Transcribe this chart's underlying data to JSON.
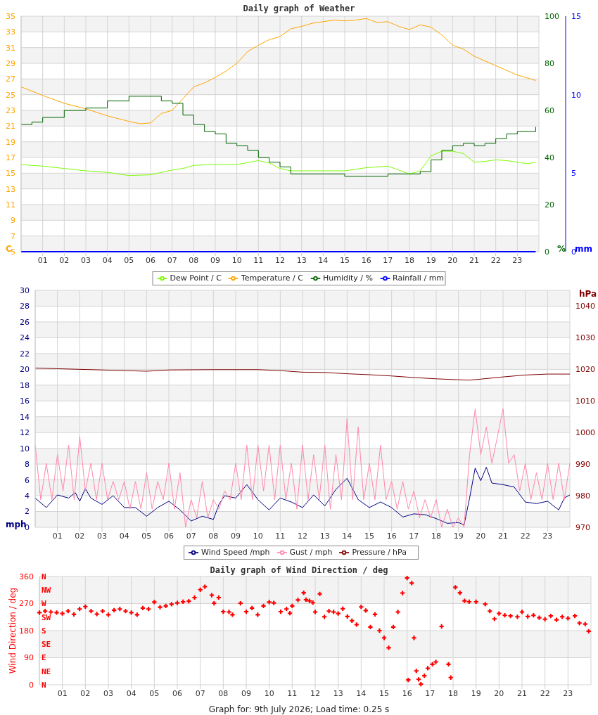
{
  "chart_data": [
    {
      "type": "line",
      "title": "Daily graph of Weather",
      "ylabel": "C",
      "y2label": "%",
      "y3label": "mm",
      "xlim": [
        0,
        24
      ],
      "xticks": [
        {
          "value": 1,
          "label": "01"
        },
        {
          "value": 2,
          "label": "02"
        },
        {
          "value": 3,
          "label": "03"
        },
        {
          "value": 4,
          "label": "04"
        },
        {
          "value": 5,
          "label": "05"
        },
        {
          "value": 6,
          "label": "06"
        },
        {
          "value": 7,
          "label": "07"
        },
        {
          "value": 8,
          "label": "08"
        },
        {
          "value": 9,
          "label": "09"
        },
        {
          "value": 10,
          "label": "10"
        },
        {
          "value": 11,
          "label": "11"
        },
        {
          "value": 12,
          "label": "12"
        },
        {
          "value": 13,
          "label": "13"
        },
        {
          "value": 14,
          "label": "14"
        },
        {
          "value": 15,
          "label": "15"
        },
        {
          "value": 16,
          "label": "16"
        },
        {
          "value": 17,
          "label": "17"
        },
        {
          "value": 18,
          "label": "18"
        },
        {
          "value": 19,
          "label": "19"
        },
        {
          "value": 20,
          "label": "20"
        },
        {
          "value": 21,
          "label": "21"
        },
        {
          "value": 22,
          "label": "22"
        },
        {
          "value": 23,
          "label": "23"
        }
      ],
      "ylim": [
        5,
        35
      ],
      "yticks": [
        5,
        7,
        9,
        11,
        13,
        15,
        17,
        19,
        21,
        23,
        25,
        27,
        29,
        31,
        33,
        35
      ],
      "y2lim": [
        0,
        100
      ],
      "y2ticks": [
        0,
        20,
        40,
        60,
        80,
        100
      ],
      "y3lim": [
        0,
        15
      ],
      "y3ticks": [
        0,
        5,
        10,
        15
      ],
      "grid": true,
      "legend": "bottom",
      "series": [
        {
          "name": "Dew Point / C",
          "color": "#7cfc00",
          "x": [
            0,
            1,
            2,
            3,
            4,
            5,
            6,
            7,
            7.5,
            8,
            9,
            10,
            11,
            11.5,
            12,
            12.5,
            13,
            14,
            15,
            16,
            17,
            18,
            18.5,
            19,
            19.5,
            20,
            20.5,
            21,
            21.5,
            22,
            22.5,
            23,
            23.5,
            23.85
          ],
          "values": [
            16.1,
            15.9,
            15.6,
            15.3,
            15.1,
            14.7,
            14.8,
            15.4,
            15.6,
            16.0,
            16.1,
            16.1,
            16.6,
            16.3,
            15.6,
            15.3,
            15.3,
            15.3,
            15.3,
            15.7,
            15.9,
            14.9,
            15.3,
            17.2,
            17.8,
            17.8,
            17.5,
            16.4,
            16.5,
            16.7,
            16.6,
            16.4,
            16.2,
            16.4
          ]
        },
        {
          "name": "Temperature / C",
          "color": "#ffa500",
          "x": [
            0,
            1,
            2,
            3,
            4,
            5,
            5.5,
            6,
            6.5,
            7,
            7.5,
            8,
            8.5,
            9,
            9.5,
            10,
            10.5,
            11,
            11.5,
            12,
            12.5,
            13,
            13.5,
            14,
            14.5,
            15,
            15.5,
            16,
            16.5,
            17,
            17.5,
            18,
            18.5,
            19,
            19.5,
            20,
            20.5,
            21,
            21.5,
            22,
            22.5,
            23,
            23.5,
            23.85
          ],
          "values": [
            26.0,
            24.9,
            23.9,
            23.2,
            22.3,
            21.6,
            21.3,
            21.4,
            22.6,
            23.0,
            24.5,
            26.0,
            26.5,
            27.2,
            28.0,
            29.0,
            30.5,
            31.3,
            32.0,
            32.4,
            33.4,
            33.7,
            34.1,
            34.3,
            34.5,
            34.4,
            34.5,
            34.7,
            34.2,
            34.3,
            33.7,
            33.3,
            33.9,
            33.6,
            32.6,
            31.3,
            30.8,
            29.9,
            29.3,
            28.7,
            28.1,
            27.5,
            27.1,
            26.8
          ]
        },
        {
          "name": "Humidity / %",
          "type": "step",
          "axis": "y2",
          "color": "#006400",
          "x": [
            0,
            0.5,
            1,
            2,
            3,
            4,
            5,
            6,
            6.5,
            7,
            7.5,
            8,
            8.5,
            9,
            9.5,
            10,
            10.5,
            11,
            11.5,
            12,
            12.5,
            13,
            14,
            15,
            16,
            17,
            18,
            18.5,
            19,
            19.5,
            20,
            20.5,
            21,
            21.5,
            22,
            22.5,
            23,
            23.5,
            23.85
          ],
          "values": [
            54,
            55,
            57,
            60,
            61,
            64,
            66,
            66,
            64,
            63,
            58,
            54,
            51,
            50,
            46,
            45,
            43,
            40,
            38,
            36,
            33,
            33,
            33,
            32,
            32,
            33,
            33,
            34,
            39,
            43,
            45,
            46,
            45,
            46,
            48,
            50,
            51,
            51,
            53
          ]
        },
        {
          "name": "Rainfall / mm",
          "axis": "y3",
          "color": "#0000ff",
          "x": [
            0,
            23.85
          ],
          "values": [
            0,
            0
          ]
        }
      ]
    },
    {
      "type": "line",
      "ylabel": "mph",
      "y2label": "hPa",
      "xlim": [
        0,
        24
      ],
      "xticks": [
        {
          "value": 1,
          "label": "01"
        },
        {
          "value": 2,
          "label": "02"
        },
        {
          "value": 3,
          "label": "03"
        },
        {
          "value": 4,
          "label": "04"
        },
        {
          "value": 5,
          "label": "05"
        },
        {
          "value": 6,
          "label": "06"
        },
        {
          "value": 7,
          "label": "07"
        },
        {
          "value": 8,
          "label": "08"
        },
        {
          "value": 9,
          "label": "09"
        },
        {
          "value": 10,
          "label": "10"
        },
        {
          "value": 11,
          "label": "11"
        },
        {
          "value": 12,
          "label": "12"
        },
        {
          "value": 13,
          "label": "13"
        },
        {
          "value": 14,
          "label": "14"
        },
        {
          "value": 15,
          "label": "15"
        },
        {
          "value": 16,
          "label": "16"
        },
        {
          "value": 17,
          "label": "17"
        },
        {
          "value": 18,
          "label": "18"
        },
        {
          "value": 19,
          "label": "19"
        },
        {
          "value": 20,
          "label": "20"
        },
        {
          "value": 21,
          "label": "21"
        },
        {
          "value": 22,
          "label": "22"
        },
        {
          "value": 23,
          "label": "23"
        }
      ],
      "ylim": [
        0,
        30
      ],
      "yticks": [
        0,
        2,
        4,
        6,
        8,
        10,
        12,
        14,
        16,
        18,
        20,
        22,
        24,
        26,
        28,
        30
      ],
      "y2lim": [
        970,
        1045
      ],
      "y2ticks": [
        970,
        980,
        990,
        1000,
        1010,
        1020,
        1030,
        1040
      ],
      "grid": true,
      "legend": "bottom",
      "series": [
        {
          "name": "Wind Speed /mph",
          "color": "#000080",
          "x": [
            0,
            0.5,
            1,
            1.5,
            1.8,
            2,
            2.25,
            2.5,
            3,
            3.5,
            4,
            4.5,
            5,
            5.5,
            6,
            6.5,
            7,
            7.5,
            8,
            8.25,
            8.5,
            9,
            9.5,
            10,
            10.5,
            11,
            11.5,
            12,
            12.5,
            13,
            13.5,
            14,
            14.5,
            15,
            15.5,
            16,
            16.5,
            17,
            17.5,
            18,
            18.5,
            19,
            19.25,
            19.5,
            19.75,
            20,
            20.25,
            20.5,
            21,
            21.5,
            22,
            22.5,
            23,
            23.5,
            23.75,
            24
          ],
          "values": [
            3.7,
            2.5,
            4.1,
            3.7,
            4.4,
            3.3,
            4.9,
            3.7,
            2.9,
            4.0,
            2.5,
            2.5,
            1.4,
            2.5,
            3.3,
            2.2,
            0.8,
            1.4,
            1.0,
            2.9,
            4.0,
            3.7,
            5.4,
            3.5,
            2.2,
            3.7,
            3.2,
            2.5,
            4.1,
            2.7,
            4.8,
            6.2,
            3.5,
            2.5,
            3.2,
            2.5,
            1.3,
            1.7,
            1.6,
            1.1,
            0.5,
            0.6,
            0.3,
            3.7,
            7.5,
            5.9,
            7.6,
            5.6,
            5.4,
            5.1,
            3.2,
            3.0,
            3.3,
            2.2,
            3.7,
            4.1
          ]
        },
        {
          "name": "Gust / mph",
          "color": "#ff88aa",
          "x": [
            0,
            0.25,
            0.5,
            0.75,
            1,
            1.25,
            1.5,
            1.75,
            2,
            2.25,
            2.5,
            2.75,
            3,
            3.25,
            3.5,
            3.75,
            4,
            4.25,
            4.5,
            4.75,
            5,
            5.25,
            5.5,
            5.75,
            6,
            6.25,
            6.5,
            6.75,
            7,
            7.25,
            7.5,
            7.75,
            8,
            8.25,
            8.5,
            8.75,
            9,
            9.25,
            9.5,
            9.75,
            10,
            10.25,
            10.5,
            10.75,
            11,
            11.25,
            11.5,
            11.75,
            12,
            12.25,
            12.5,
            12.75,
            13,
            13.25,
            13.5,
            13.75,
            14,
            14.25,
            14.5,
            14.75,
            15,
            15.25,
            15.5,
            15.75,
            16,
            16.25,
            16.5,
            16.75,
            17,
            17.25,
            17.5,
            17.75,
            18,
            18.25,
            18.5,
            18.75,
            19,
            19.25,
            19.5,
            19.75,
            20,
            20.25,
            20.5,
            20.75,
            21,
            21.25,
            21.5,
            21.75,
            22,
            22.25,
            22.5,
            22.75,
            23,
            23.25,
            23.5,
            23.75,
            24
          ],
          "values": [
            10.4,
            3.5,
            8.1,
            3.5,
            9.2,
            4.6,
            10.4,
            3.5,
            11.5,
            4.6,
            8.1,
            3.5,
            8.1,
            3.5,
            5.8,
            3.5,
            5.8,
            2.3,
            5.8,
            2.3,
            6.9,
            2.3,
            5.8,
            3.5,
            8.1,
            2.3,
            6.9,
            0,
            3.5,
            1.2,
            5.8,
            1.2,
            3.5,
            2.3,
            4.6,
            3.5,
            8.1,
            3.5,
            10.4,
            3.5,
            10.4,
            4.6,
            10.4,
            3.5,
            10.4,
            3.5,
            8.1,
            2.3,
            10.4,
            3.5,
            9.2,
            3.5,
            10.4,
            2.3,
            9.2,
            3.5,
            13.8,
            3.5,
            12.7,
            3.5,
            8.1,
            3.5,
            10.4,
            3.5,
            5.8,
            2.3,
            5.8,
            2.3,
            4.6,
            1.2,
            3.5,
            1.2,
            3.5,
            0,
            2.3,
            0,
            1.2,
            0,
            9.2,
            15,
            9.2,
            12.7,
            8.1,
            11.5,
            15,
            8.1,
            9.2,
            4.6,
            8.1,
            3.5,
            6.9,
            3.5,
            8.1,
            3.5,
            8.1,
            3.5,
            8.1
          ]
        },
        {
          "name": "Pressure / hPa",
          "axis": "y2",
          "color": "#800000",
          "x": [
            0,
            2,
            3,
            4,
            5,
            6,
            8,
            10,
            11,
            12,
            13,
            14,
            15,
            16,
            17,
            18,
            19,
            19.5,
            20,
            21,
            22,
            23,
            24
          ],
          "values": [
            1020.4,
            1020.0,
            1019.8,
            1019.6,
            1019.4,
            1019.8,
            1019.9,
            1019.9,
            1019.6,
            1019.1,
            1019.0,
            1018.6,
            1018.3,
            1017.9,
            1017.4,
            1017.0,
            1016.7,
            1016.6,
            1016.9,
            1017.6,
            1018.2,
            1018.5,
            1018.5
          ]
        }
      ]
    },
    {
      "type": "scatter",
      "title": "Daily graph of Wind Direction / deg",
      "ylabel": "Wind Direction / deg",
      "xlim": [
        0,
        24
      ],
      "xticks": [
        {
          "value": 1,
          "label": "01"
        },
        {
          "value": 2,
          "label": "02"
        },
        {
          "value": 3,
          "label": "03"
        },
        {
          "value": 4,
          "label": "04"
        },
        {
          "value": 5,
          "label": "05"
        },
        {
          "value": 6,
          "label": "06"
        },
        {
          "value": 7,
          "label": "07"
        },
        {
          "value": 8,
          "label": "08"
        },
        {
          "value": 9,
          "label": "09"
        },
        {
          "value": 10,
          "label": "10"
        },
        {
          "value": 11,
          "label": "11"
        },
        {
          "value": 12,
          "label": "12"
        },
        {
          "value": 13,
          "label": "13"
        },
        {
          "value": 14,
          "label": "14"
        },
        {
          "value": 15,
          "label": "15"
        },
        {
          "value": 16,
          "label": "16"
        },
        {
          "value": 17,
          "label": "17"
        },
        {
          "value": 18,
          "label": "18"
        },
        {
          "value": 19,
          "label": "19"
        },
        {
          "value": 20,
          "label": "20"
        },
        {
          "value": 21,
          "label": "21"
        },
        {
          "value": 22,
          "label": "22"
        },
        {
          "value": 23,
          "label": "23"
        }
      ],
      "ylim": [
        0,
        360
      ],
      "yticks": [
        0,
        90,
        180,
        270,
        360
      ],
      "grid": true,
      "marker": "cross",
      "annotations": [
        "Graph for: 9th July 2026; Load time: 0.25 s",
        "N",
        "NE",
        "E",
        "SE",
        "S",
        "SW",
        "W",
        "NW",
        "N"
      ],
      "series": [
        {
          "color": "#ff0000",
          "x": [
            0,
            0.25,
            0.5,
            0.75,
            1,
            1.25,
            1.5,
            1.75,
            2,
            2.25,
            2.5,
            2.75,
            3,
            3.25,
            3.5,
            3.75,
            4,
            4.25,
            4.5,
            4.75,
            5,
            5.25,
            5.5,
            5.75,
            6,
            6.25,
            6.5,
            6.75,
            7,
            7.2,
            7.5,
            7.6,
            7.8,
            8,
            8.25,
            8.4,
            8.75,
            9,
            9.25,
            9.5,
            9.75,
            10,
            10.2,
            10.5,
            10.75,
            10.9,
            11,
            11.25,
            11.5,
            11.6,
            11.75,
            11.9,
            12,
            12.2,
            12.4,
            12.6,
            12.8,
            13,
            13.2,
            13.4,
            13.6,
            13.8,
            14,
            14.2,
            14.4,
            14.6,
            14.8,
            15,
            15.2,
            15.4,
            15.6,
            15.8,
            16,
            16.05,
            16.2,
            16.3,
            16.4,
            16.5,
            16.6,
            16.75,
            16.9,
            17.1,
            17.25,
            17.5,
            17.8,
            17.9,
            18.1,
            18.3,
            18.5,
            18.7,
            19,
            19.4,
            19.6,
            19.8,
            20,
            20.25,
            20.5,
            20.8,
            21,
            21.25,
            21.5,
            21.75,
            22,
            22.25,
            22.5,
            22.75,
            23,
            23.3,
            23.5,
            23.75,
            23.9
          ],
          "values": [
            240,
            245,
            242,
            240,
            237,
            245,
            234,
            252,
            260,
            245,
            235,
            245,
            233,
            248,
            252,
            245,
            240,
            233,
            255,
            252,
            275,
            258,
            262,
            268,
            272,
            276,
            278,
            290,
            316,
            326,
            298,
            271,
            290,
            243,
            242,
            233,
            271,
            243,
            255,
            233,
            262,
            275,
            272,
            243,
            252,
            238,
            262,
            282,
            306,
            283,
            279,
            273,
            242,
            302,
            226,
            245,
            242,
            237,
            253,
            227,
            213,
            200,
            259,
            247,
            192,
            234,
            180,
            156,
            123,
            192,
            242,
            305,
            355,
            16,
            338,
            156,
            46,
            18,
            2,
            30,
            55,
            68,
            76,
            194,
            68,
            24,
            324,
            306,
            279,
            276,
            276,
            268,
            245,
            219,
            237,
            231,
            229,
            226,
            242,
            227,
            231,
            223,
            218,
            229,
            216,
            226,
            221,
            229,
            205,
            202,
            178
          ]
        }
      ]
    }
  ]
}
